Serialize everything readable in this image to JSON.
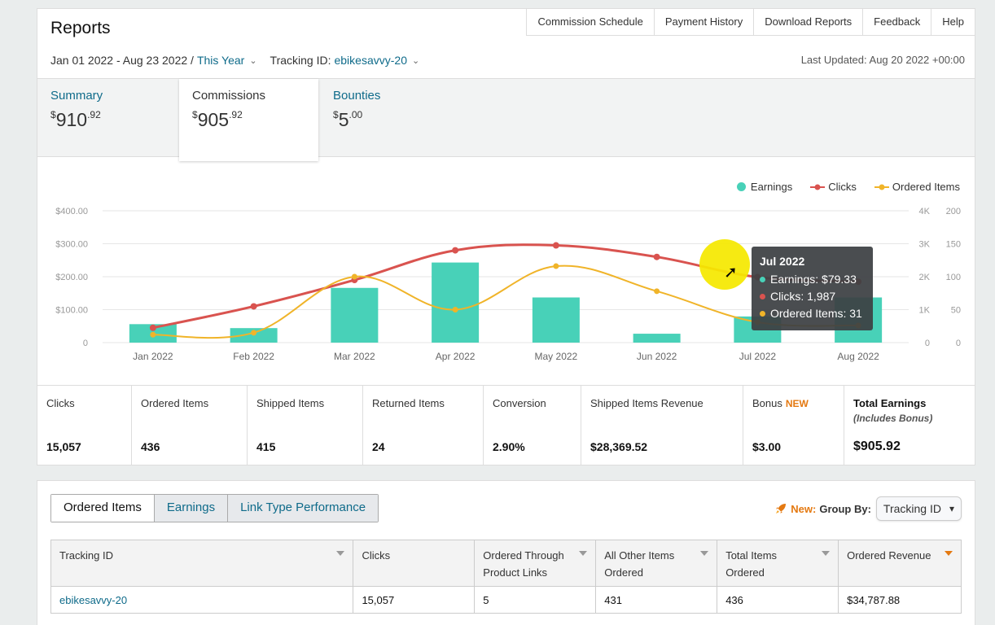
{
  "header": {
    "title": "Reports",
    "nav": [
      "Commission Schedule",
      "Payment History",
      "Download Reports",
      "Feedback",
      "Help"
    ],
    "date_range": "Jan 01 2022 - Aug 23 2022 /",
    "period": "This Year",
    "tracking_label": "Tracking ID:",
    "tracking_id": "ebikesavvy-20",
    "last_updated": "Last Updated: Aug 20 2022 +00:00"
  },
  "summary": [
    {
      "label": "Summary",
      "dollars": "910",
      "cents": ".92",
      "currency": "$"
    },
    {
      "label": "Commissions",
      "dollars": "905",
      "cents": ".92",
      "currency": "$"
    },
    {
      "label": "Bounties",
      "dollars": "5",
      "cents": ".00",
      "currency": "$"
    }
  ],
  "legend": [
    {
      "label": "Earnings",
      "color": "#48d1b8"
    },
    {
      "label": "Clicks",
      "color": "#d9534f"
    },
    {
      "label": "Ordered Items",
      "color": "#f0b429"
    }
  ],
  "chart_data": {
    "type": "bar",
    "categories": [
      "Jan 2022",
      "Feb 2022",
      "Mar 2022",
      "Apr 2022",
      "May 2022",
      "Jun 2022",
      "Jul 2022",
      "Aug 2022"
    ],
    "series": [
      {
        "name": "Earnings",
        "type": "bar",
        "axis": "left",
        "values": [
          56,
          44,
          166,
          243,
          137,
          27,
          79.33,
          137
        ]
      },
      {
        "name": "Clicks",
        "type": "line",
        "axis": "right1",
        "values": [
          450,
          1100,
          1900,
          2800,
          2950,
          2600,
          1987,
          1850
        ]
      },
      {
        "name": "Ordered Items",
        "type": "line",
        "axis": "right2",
        "values": [
          12,
          15,
          100,
          50,
          116,
          78,
          31,
          26
        ]
      }
    ],
    "left_ticks": [
      "0",
      "$100.00",
      "$200.00",
      "$300.00",
      "$400.00"
    ],
    "left_range": [
      0,
      400
    ],
    "right1_ticks": [
      "0",
      "1K",
      "2K",
      "3K",
      "4K"
    ],
    "right1_range": [
      0,
      4000
    ],
    "right2_ticks": [
      "0",
      "50",
      "100",
      "150",
      "200"
    ],
    "right2_range": [
      0,
      200
    ],
    "grid": true
  },
  "tooltip": {
    "title": "Jul 2022",
    "rows": [
      "Earnings: $79.33",
      "Clicks: 1,987",
      "Ordered Items: 31"
    ]
  },
  "stats": [
    {
      "label": "Clicks",
      "value": "15,057"
    },
    {
      "label": "Ordered Items",
      "value": "436"
    },
    {
      "label": "Shipped Items",
      "value": "415"
    },
    {
      "label": "Returned Items",
      "value": "24"
    },
    {
      "label": "Conversion",
      "value": "2.90%"
    },
    {
      "label": "Shipped Items Revenue",
      "value": "$28,369.52"
    },
    {
      "label": "Bonus",
      "badge": "NEW",
      "value": "$3.00"
    },
    {
      "label": "Total Earnings",
      "sub": "(Includes Bonus)",
      "value": "$905.92"
    }
  ],
  "bottom": {
    "tabs": [
      "Ordered Items",
      "Earnings",
      "Link Type Performance"
    ],
    "new_label": "New:",
    "group_by_label": "Group By:",
    "group_by_value": "Tracking ID",
    "columns": [
      "Tracking ID",
      "Clicks",
      "Ordered Through Product Links",
      "All Other Items Ordered",
      "Total Items Ordered",
      "Ordered Revenue"
    ],
    "rows": [
      [
        "ebikesavvy-20",
        "15,057",
        "5",
        "431",
        "436",
        "$34,787.88"
      ]
    ]
  }
}
